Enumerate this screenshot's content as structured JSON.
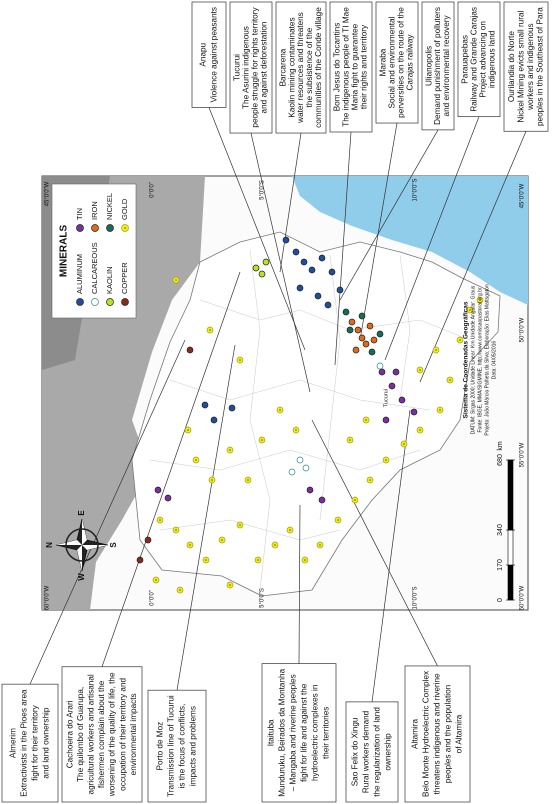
{
  "top_boxes": [
    {
      "title": "Anapu",
      "text": [
        "Violence against peasants"
      ]
    },
    {
      "title": "Tucurui",
      "text": [
        "The Asurini indigenous",
        "people struggle for rights territory",
        "and against deforestation"
      ]
    },
    {
      "title": "Barcarena",
      "text": [
        "Kaolin mining contaminates",
        "water resources and threatens",
        "the subsistence of the",
        "communities of the Conde village"
      ]
    },
    {
      "title": "Bom Jesus do Tocantins",
      "text": [
        "The indigenous people of TI Mae",
        "Maria fight to guarantee",
        "their rights and territory"
      ]
    },
    {
      "title": "Maraba",
      "text": [
        "Social and environmental",
        "perversities on the route of the",
        "Carajas railway"
      ]
    },
    {
      "title": "Ulianopolis",
      "text": [
        "Demand punishment of polluters",
        "and environmental recovery"
      ]
    },
    {
      "title": "Parauapebas",
      "text": [
        "Railway and Grande Carajas",
        "Project advancing on",
        "indigenous land"
      ]
    },
    {
      "title": "Ourilandia do Norte",
      "text": [
        "Nickel Mining evicts small rural",
        "workers and indigenous",
        "peoples in the Southeast of Para"
      ]
    }
  ],
  "bottom_boxes": [
    {
      "title": "Almerim",
      "text": [
        "Extractivists in the Pioes area",
        "fight for their territory",
        "and land ownership"
      ]
    },
    {
      "title": "Cachoeira do Arari",
      "text": [
        "The quilombo of Guarupa,",
        "agricultural workers and artisanal",
        "fishermen complain about the",
        "worsening of the quality of life, the",
        "occupation of their territory and",
        "environmental impacts"
      ]
    },
    {
      "title": "Porto de Moz",
      "text": [
        "Transmission line of Tucurui",
        "is the focus of conflicts,",
        "impacts and problems"
      ]
    },
    {
      "title": "Itaituba",
      "text": [
        "Munduruku, Beirados da Montanha",
        "– Mangaba and riverine peoples",
        "fight for life and against the",
        "hydroelectric complexes in",
        "their territories"
      ]
    },
    {
      "title": "Sao Felix do Xingu",
      "text": [
        "Rural workers demand",
        "the regularization of land",
        "ownership"
      ]
    },
    {
      "title": "Altamira",
      "text": [
        "Belo Monte Hydroelectric Complex",
        "threatens indigenous and riverine",
        "peoples and the population",
        "of Altamira"
      ]
    }
  ],
  "map": {
    "legend": {
      "title": "MINERALS",
      "items": [
        {
          "name": "ALUMINUM",
          "color": "#1f4e9c"
        },
        {
          "name": "CALCAREOUS",
          "color": "#ffffff"
        },
        {
          "name": "KAOLIN",
          "color": "#b5e61d"
        },
        {
          "name": "COPPER",
          "color": "#8b2a1a"
        },
        {
          "name": "TIN",
          "color": "#7a2ea0"
        },
        {
          "name": "IRON",
          "color": "#e06a1a"
        },
        {
          "name": "NICKEL",
          "color": "#1a6b5a"
        },
        {
          "name": "GOLD",
          "color": "#f2ee1a"
        }
      ]
    },
    "lat_labels": [
      "0°0'0\"",
      "5°0'0\"S",
      "10°0'0\"S"
    ],
    "lon_labels": [
      "45°0'0\"W",
      "50°0'0\"W",
      "55°0'0\"W",
      "60°0'0\"W"
    ],
    "place_label": "Tucuruí",
    "compass": [
      "N",
      "E",
      "S",
      "W"
    ],
    "scale_bar": {
      "ticks": [
        0,
        170,
        340,
        680
      ],
      "unit": "km"
    },
    "credits": [
      "Sistema de Coordenadas Geográficas",
      "DATUM: Sirgas 2000; Unidade Linear: Km Unidade Angular: Graus",
      "Fonte: IBGE, MMA/SIGMINE, http://www.comissaopastoral.org.br",
      "Projeto: João Márcio Palheta da Silva; Elaboração: Elias Mattsgaton",
      "Data: 04/05/2016"
    ]
  }
}
